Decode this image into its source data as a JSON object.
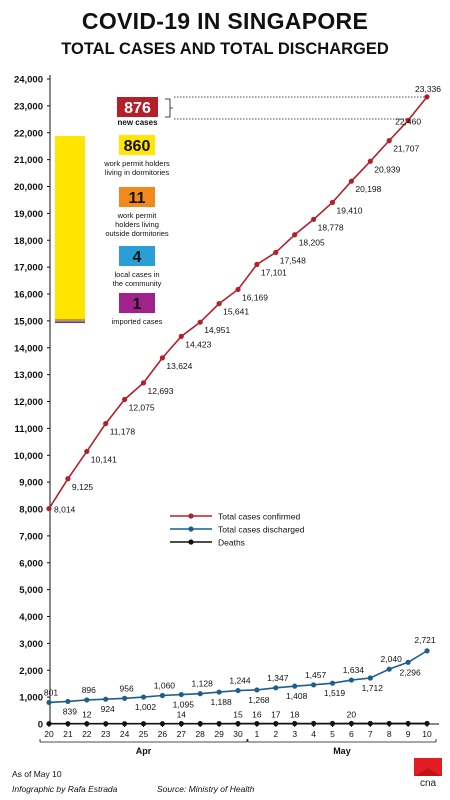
{
  "title": "COVID-19 IN SINGAPORE",
  "subtitle": "TOTAL CASES AND TOTAL DISCHARGED",
  "footer": {
    "as_of": "As of May 10",
    "credit_prefix": "Infographic by",
    "credit_name": "Rafa Estrada",
    "source": "Source: Ministry of Health"
  },
  "logo_text": "cna",
  "colors": {
    "confirmed": "#b3202a",
    "discharged": "#1e5f8a",
    "deaths": "#111111",
    "new_cases": "#b3202a",
    "dorm": "#ffe500",
    "nondorm": "#f08a1c",
    "community": "#2a9fd6",
    "imported": "#a0238b"
  },
  "breakdown": {
    "new_total": {
      "value": "876",
      "label": "new cases"
    },
    "items": [
      {
        "value": "860",
        "label": "work permit holders living in dormitories",
        "color": "#ffe500"
      },
      {
        "value": "11",
        "label": "work permit holders living outside dormitories",
        "color": "#f08a1c"
      },
      {
        "value": "4",
        "label": "local cases in the community",
        "color": "#2a9fd6"
      },
      {
        "value": "1",
        "label": "imported cases",
        "color": "#a0238b"
      }
    ]
  },
  "chart_data": {
    "type": "line",
    "x": [
      "20",
      "21",
      "22",
      "23",
      "24",
      "25",
      "26",
      "27",
      "28",
      "29",
      "30",
      "1",
      "2",
      "3",
      "4",
      "5",
      "6",
      "7",
      "8",
      "9",
      "10"
    ],
    "months": [
      {
        "label": "Apr",
        "from": 0,
        "to": 10
      },
      {
        "label": "May",
        "from": 11,
        "to": 20
      }
    ],
    "ylim": [
      0,
      24000
    ],
    "yticks": [
      0,
      1000,
      2000,
      3000,
      4000,
      5000,
      6000,
      7000,
      8000,
      9000,
      10000,
      11000,
      12000,
      13000,
      14000,
      15000,
      16000,
      17000,
      18000,
      19000,
      20000,
      21000,
      22000,
      23000,
      24000
    ],
    "ytick_labels": [
      "0",
      "1,000",
      "2,000",
      "3,000",
      "4,000",
      "5,000",
      "6,000",
      "7,000",
      "8,000",
      "9,000",
      "10,000",
      "11,000",
      "12,000",
      "13,000",
      "14,000",
      "15,000",
      "16,000",
      "17,000",
      "18,000",
      "19,000",
      "20,000",
      "21,000",
      "22,000",
      "23,000",
      "24,000"
    ],
    "grid": false,
    "legend_position": "center",
    "series": [
      {
        "name": "Total cases confirmed",
        "color": "#b3202a",
        "values": [
          8014,
          9125,
          10141,
          11178,
          12075,
          12693,
          13624,
          14423,
          14951,
          15641,
          16169,
          17101,
          17548,
          18205,
          18778,
          19410,
          20198,
          20939,
          21707,
          22460,
          23336
        ],
        "labels": [
          "8,014",
          "9,125",
          "10,141",
          "11,178",
          "12,075",
          "12,693",
          "13,624",
          "14,423",
          "14,951",
          "15,641",
          "16,169",
          "17,101",
          "17,548",
          "18,205",
          "18,778",
          "19,410",
          "20,198",
          "20,939",
          "21,707",
          "22,460",
          "23,336"
        ]
      },
      {
        "name": "Total cases discharged",
        "color": "#1e5f8a",
        "values": [
          801,
          839,
          896,
          924,
          956,
          1002,
          1060,
          1095,
          1128,
          1188,
          1244,
          1268,
          1347,
          1408,
          1457,
          1519,
          1634,
          1712,
          2040,
          2296,
          2721
        ],
        "labels": [
          "801",
          "839",
          "896",
          "924",
          "956",
          "1,002",
          "1,060",
          "1,095",
          "1,128",
          "1,188",
          "1,244",
          "1,268",
          "1,347",
          "1,408",
          "1,457",
          "1,519",
          "1,634",
          "1,712",
          "2,040",
          "2,296",
          "2,721"
        ]
      },
      {
        "name": "Deaths",
        "color": "#111111",
        "values": [
          12,
          12,
          12,
          12,
          12,
          12,
          12,
          14,
          14,
          14,
          15,
          16,
          17,
          18,
          18,
          18,
          20,
          20,
          20,
          20,
          20
        ],
        "labels": [
          "",
          "",
          "12",
          "",
          "",
          "",
          "",
          "14",
          "",
          "",
          "15",
          "16",
          "17",
          "18",
          "",
          "",
          "20",
          "",
          "",
          "",
          ""
        ]
      }
    ]
  }
}
